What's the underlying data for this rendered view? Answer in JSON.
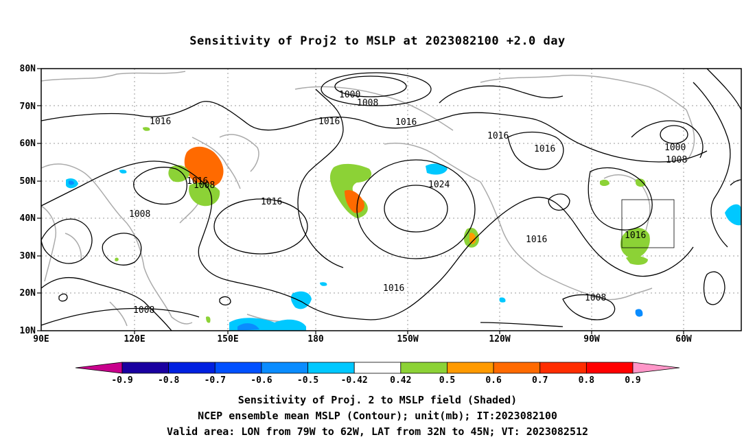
{
  "title": "Sensitivity of Proj2 to MSLP at 2023082100 +2.0 day",
  "axes": {
    "lat_labels": [
      "80N",
      "70N",
      "60N",
      "50N",
      "40N",
      "30N",
      "20N",
      "10N"
    ],
    "lon_labels": [
      "90E",
      "120E",
      "150E",
      "180",
      "150W",
      "120W",
      "90W",
      "60W"
    ]
  },
  "contours": {
    "labels": [
      "1000",
      "1008",
      "1016",
      "1016",
      "1016",
      "1016",
      "1016",
      "1000",
      "1008",
      "1016",
      "1008",
      "1008",
      "1016",
      "1024",
      "1016",
      "1016",
      "1008",
      "1008",
      "1016"
    ]
  },
  "colorbar": {
    "ticks": [
      "-0.9",
      "-0.8",
      "-0.7",
      "-0.6",
      "-0.5",
      "-0.42",
      "0.42",
      "0.5",
      "0.6",
      "0.7",
      "0.8",
      "0.9"
    ],
    "colors": [
      "#c8008c",
      "#1a00a0",
      "#0020e0",
      "#0050ff",
      "#0a8cff",
      "#00c8ff",
      "#ffffff",
      "#8cd236",
      "#ff9a00",
      "#ff6a00",
      "#ff2d00",
      "#ff0000",
      "#ff96c8"
    ]
  },
  "captions": [
    "Sensitivity of Proj. 2 to MSLP field (Shaded)",
    "NCEP ensemble mean MSLP (Contour); unit(mb); IT:2023082100",
    "Valid area: LON from 79W to 62W, LAT from 32N to 45N; VT: 2023082512"
  ],
  "valid_area": {
    "lon_min": -79,
    "lon_max": -62,
    "lat_min": 32,
    "lat_max": 45
  }
}
